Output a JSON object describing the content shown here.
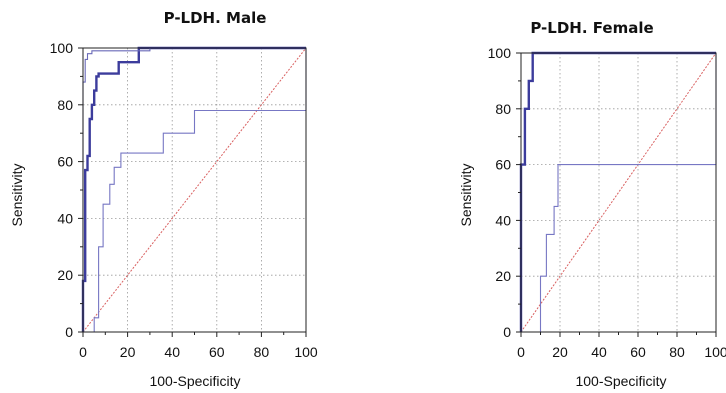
{
  "chart_data": [
    {
      "type": "line",
      "title": "P-LDH. Male",
      "xlabel": "100-Specificity",
      "ylabel": "Sensitivity",
      "xlim": [
        0,
        100
      ],
      "ylim": [
        0,
        100
      ],
      "xticks": [
        "0",
        "20",
        "40",
        "60",
        "80",
        "100"
      ],
      "yticks": [
        "0",
        "20",
        "40",
        "60",
        "80",
        "100"
      ],
      "grid": true,
      "reference_line": [
        [
          0,
          0
        ],
        [
          100,
          100
        ]
      ],
      "series": [
        {
          "style": "thick",
          "color": "#3c3c9c",
          "points": [
            [
              0,
              0
            ],
            [
              0,
              18
            ],
            [
              1,
              18
            ],
            [
              1,
              57
            ],
            [
              2,
              57
            ],
            [
              2,
              62
            ],
            [
              3,
              62
            ],
            [
              3,
              75
            ],
            [
              4,
              75
            ],
            [
              4,
              80
            ],
            [
              5,
              80
            ],
            [
              5,
              85
            ],
            [
              6,
              85
            ],
            [
              6,
              90
            ],
            [
              7,
              90
            ],
            [
              7,
              91
            ],
            [
              16,
              91
            ],
            [
              16,
              95
            ],
            [
              25,
              95
            ],
            [
              25,
              100
            ],
            [
              37,
              100
            ],
            [
              100,
              100
            ]
          ]
        },
        {
          "style": "thin",
          "color": "#6a6ab8",
          "points": [
            [
              0,
              0
            ],
            [
              0,
              88
            ],
            [
              1,
              88
            ],
            [
              1,
              96
            ],
            [
              2,
              96
            ],
            [
              2,
              98
            ],
            [
              4,
              98
            ],
            [
              4,
              99
            ],
            [
              30,
              99
            ],
            [
              30,
              100
            ],
            [
              100,
              100
            ]
          ]
        },
        {
          "style": "thin",
          "color": "#7777c4",
          "points": [
            [
              0,
              0
            ],
            [
              5,
              0
            ],
            [
              5,
              5
            ],
            [
              7,
              5
            ],
            [
              7,
              30
            ],
            [
              9,
              30
            ],
            [
              9,
              45
            ],
            [
              12,
              45
            ],
            [
              12,
              52
            ],
            [
              14,
              52
            ],
            [
              14,
              58
            ],
            [
              17,
              58
            ],
            [
              17,
              63
            ],
            [
              36,
              63
            ],
            [
              36,
              70
            ],
            [
              50,
              70
            ],
            [
              50,
              78
            ],
            [
              100,
              78
            ],
            [
              100,
              100
            ]
          ]
        }
      ]
    },
    {
      "type": "line",
      "title": "P-LDH. Female",
      "xlabel": "100-Specificity",
      "ylabel": "Sensitivity",
      "xlim": [
        0,
        100
      ],
      "ylim": [
        0,
        100
      ],
      "xticks": [
        "0",
        "20",
        "40",
        "60",
        "80",
        "100"
      ],
      "yticks": [
        "0",
        "20",
        "40",
        "60",
        "80",
        "100"
      ],
      "grid": true,
      "reference_line": [
        [
          0,
          0
        ],
        [
          100,
          100
        ]
      ],
      "series": [
        {
          "style": "thick",
          "color": "#3c3c9c",
          "points": [
            [
              0,
              0
            ],
            [
              0,
              60
            ],
            [
              2,
              60
            ],
            [
              2,
              80
            ],
            [
              4,
              80
            ],
            [
              4,
              90
            ],
            [
              6,
              90
            ],
            [
              6,
              100
            ],
            [
              100,
              100
            ]
          ]
        },
        {
          "style": "thin",
          "color": "#7777c4",
          "points": [
            [
              0,
              0
            ],
            [
              10,
              0
            ],
            [
              10,
              20
            ],
            [
              13,
              20
            ],
            [
              13,
              35
            ],
            [
              17,
              35
            ],
            [
              17,
              45
            ],
            [
              19,
              45
            ],
            [
              19,
              60
            ],
            [
              100,
              60
            ],
            [
              100,
              100
            ]
          ]
        }
      ]
    }
  ]
}
